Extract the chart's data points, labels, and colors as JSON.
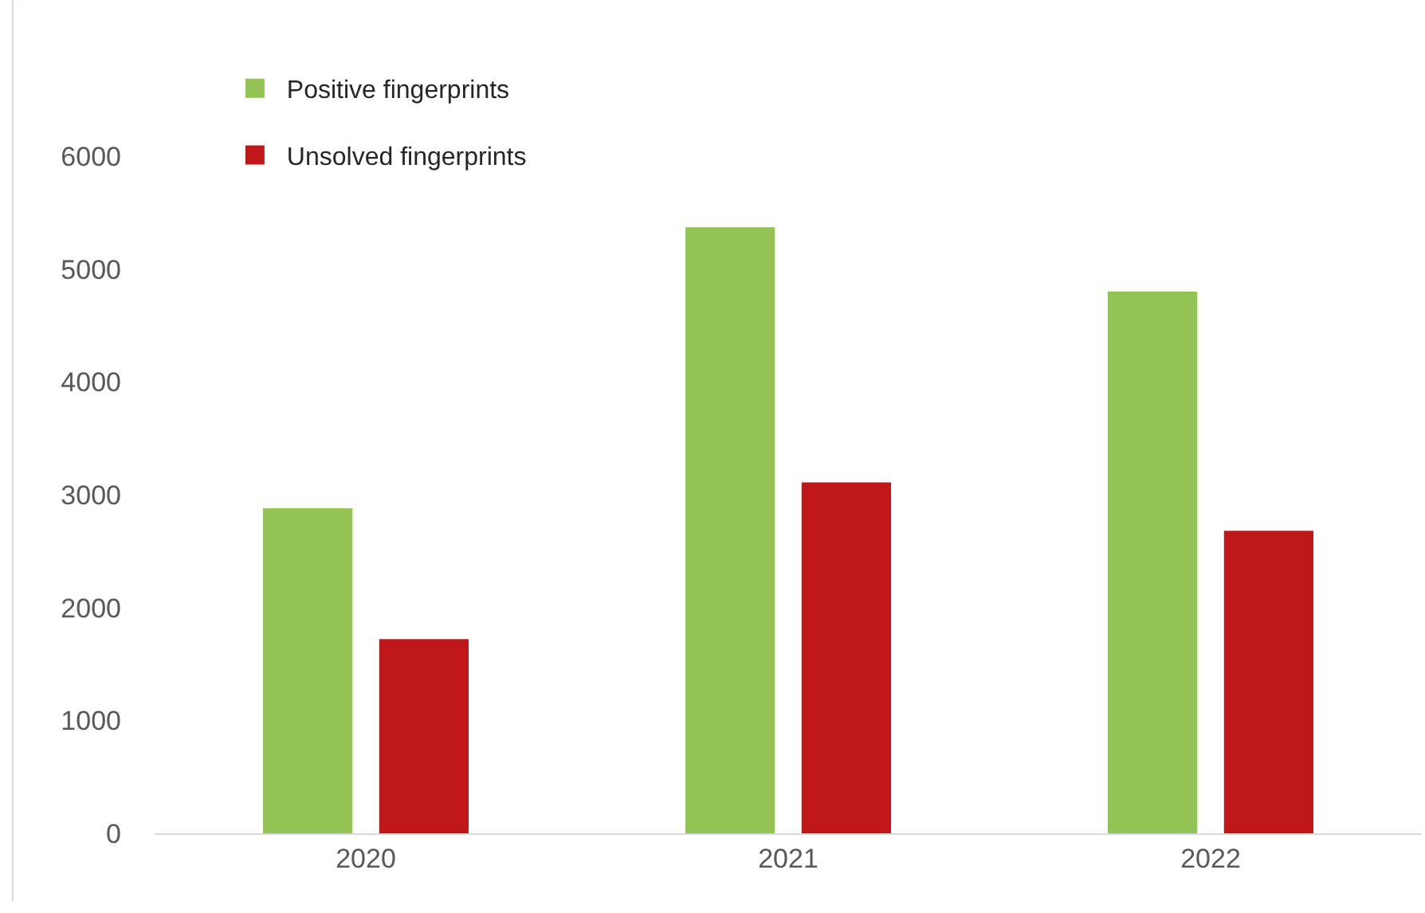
{
  "chart_data": {
    "type": "bar",
    "categories": [
      "2020",
      "2021",
      "2022"
    ],
    "series": [
      {
        "name": "Positive fingerprints",
        "color": "#92c353",
        "values": [
          2880,
          5370,
          4800
        ]
      },
      {
        "name": "Unsolved fingerprints",
        "color": "#c0171a",
        "values": [
          1720,
          3110,
          2680
        ]
      }
    ],
    "ylim": [
      0,
      6000
    ],
    "yticks": [
      0,
      1000,
      2000,
      3000,
      4000,
      5000,
      6000
    ],
    "grid": false,
    "legend": "top left"
  }
}
